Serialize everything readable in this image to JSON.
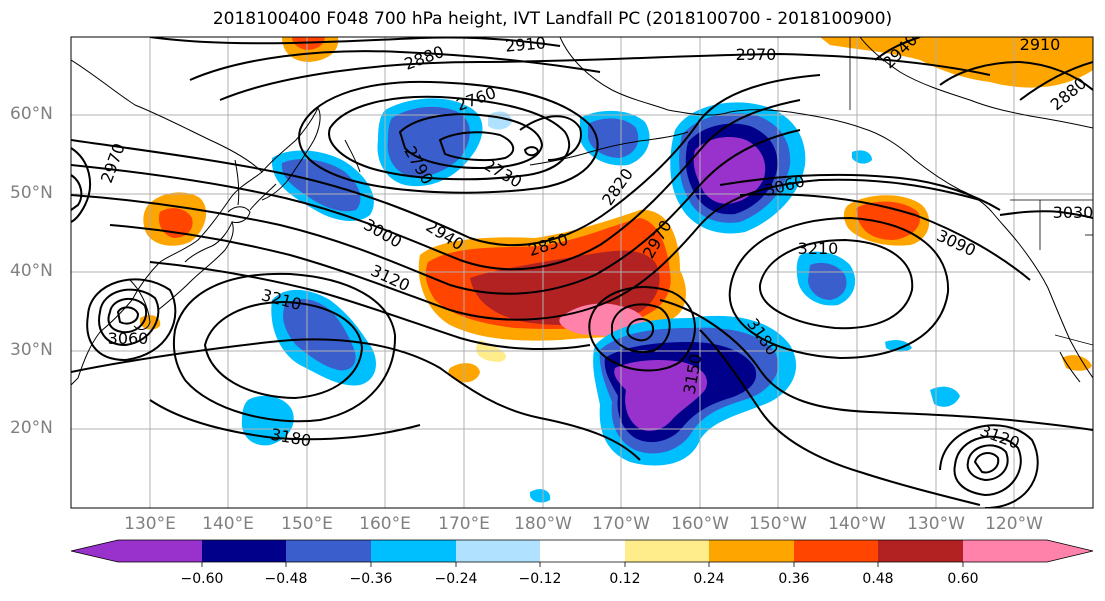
{
  "title": "2018100400 F048 700 hPa height, IVT Landfall PC (2018100700 - 2018100900)",
  "latitude_labels": [
    "60°N",
    "50°N",
    "40°N",
    "30°N",
    "20°N"
  ],
  "longitude_labels": [
    "130°E",
    "140°E",
    "150°E",
    "160°E",
    "170°E",
    "180°W",
    "170°W",
    "160°W",
    "150°W",
    "140°W",
    "130°W",
    "120°W"
  ],
  "contour_labels": [
    "2910",
    "2970",
    "2880",
    "2760",
    "2730",
    "2790",
    "2820",
    "2850",
    "2940",
    "2970",
    "3000",
    "3060",
    "3090",
    "3030",
    "3210",
    "3120",
    "3210",
    "3060",
    "3180",
    "3150",
    "3180",
    "3120",
    "2940",
    "2970",
    "2910",
    "2880"
  ],
  "colorbar": {
    "ticks": [
      "−0.60",
      "−0.48",
      "−0.36",
      "−0.24",
      "−0.12",
      "0.12",
      "0.24",
      "0.36",
      "0.48",
      "0.60"
    ],
    "colors": [
      "#9932cc",
      "#00008b",
      "#3a5fcd",
      "#00bfff",
      "#b0e2ff",
      "#ffffff",
      "#ffec8b",
      "#ffa500",
      "#ff4500",
      "#b22222",
      "#ff82ab"
    ],
    "extend": "both"
  },
  "map": {
    "projection": "cylindrical",
    "lon_range": [
      120,
      250
    ],
    "lat_range": [
      10,
      70
    ],
    "grid": true,
    "field_colors": {
      "neg_strong": "#9932cc",
      "neg_2": "#00008b",
      "neg_3": "#3a5fcd",
      "neg_4": "#00bfff",
      "neg_5": "#b0e2ff",
      "pos_1": "#ffec8b",
      "pos_2": "#ffa500",
      "pos_3": "#ff4500",
      "pos_4": "#b22222",
      "pos_5": "#ff82ab"
    }
  }
}
